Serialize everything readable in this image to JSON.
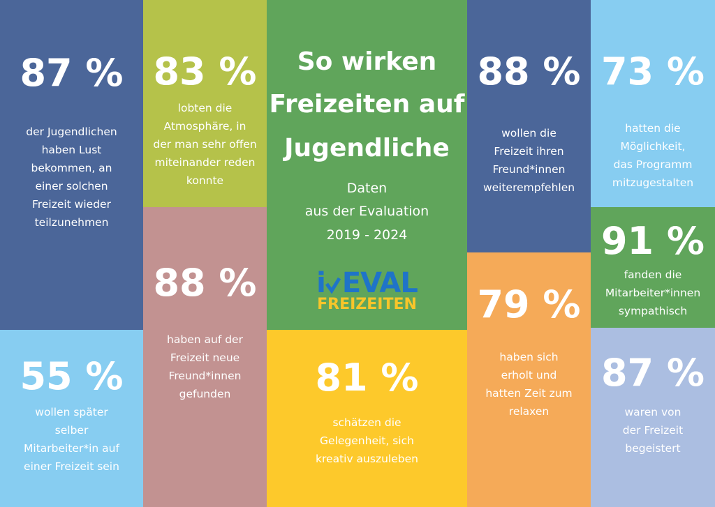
{
  "colors": {
    "navy": "#4b6699",
    "olive": "#b5c24a",
    "rose": "#c29291",
    "green": "#60a55b",
    "yellow": "#fdc92b",
    "orange": "#f5aa58",
    "lightblue": "#87cdf1",
    "lavender": "#abbee1",
    "logo_blue": "#1f74c8",
    "logo_yellow": "#f8c52a"
  },
  "header": {
    "title_lines": [
      "So wirken",
      "Freizeiten auf",
      "Jugendliche"
    ],
    "subtitle_lines": [
      "Daten",
      "aus der Evaluation",
      "2019 - 2024"
    ]
  },
  "logo": {
    "top": "EVAL",
    "bottom": "FREIZEITEN",
    "icon": "checkmark-icon"
  },
  "stats": [
    {
      "value": "87 %",
      "lines": [
        "der Jugendlichen",
        "haben Lust",
        "bekommen, an",
        "einer solchen",
        "Freizeit wieder",
        "teilzunehmen"
      ]
    },
    {
      "value": "55 %",
      "lines": [
        "wollen später",
        "selber",
        "Mitarbeiter*in auf",
        "einer Freizeit sein"
      ]
    },
    {
      "value": "83 %",
      "lines": [
        "lobten die",
        "Atmosphäre, in",
        "der man sehr offen",
        "miteinander reden",
        "konnte"
      ]
    },
    {
      "value": "88 %",
      "lines": [
        "haben auf der",
        "Freizeit neue",
        "Freund*innen",
        "gefunden"
      ]
    },
    {
      "value": "81 %",
      "lines": [
        "schätzen die",
        "Gelegenheit, sich",
        "kreativ auszuleben"
      ]
    },
    {
      "value": "88 %",
      "lines": [
        "wollen die",
        "Freizeit ihren",
        "Freund*innen",
        "weiterempfehlen"
      ]
    },
    {
      "value": "79 %",
      "lines": [
        "haben sich",
        "erholt und",
        "hatten Zeit zum",
        "relaxen"
      ]
    },
    {
      "value": "73 %",
      "lines": [
        "hatten die",
        "Möglichkeit,",
        "das Programm",
        "mitzugestalten"
      ]
    },
    {
      "value": "91 %",
      "lines": [
        "fanden die",
        "Mitarbeiter*innen",
        "sympathisch"
      ]
    },
    {
      "value": "87 %",
      "lines": [
        "waren von",
        "der Freizeit",
        "begeistert"
      ]
    }
  ]
}
